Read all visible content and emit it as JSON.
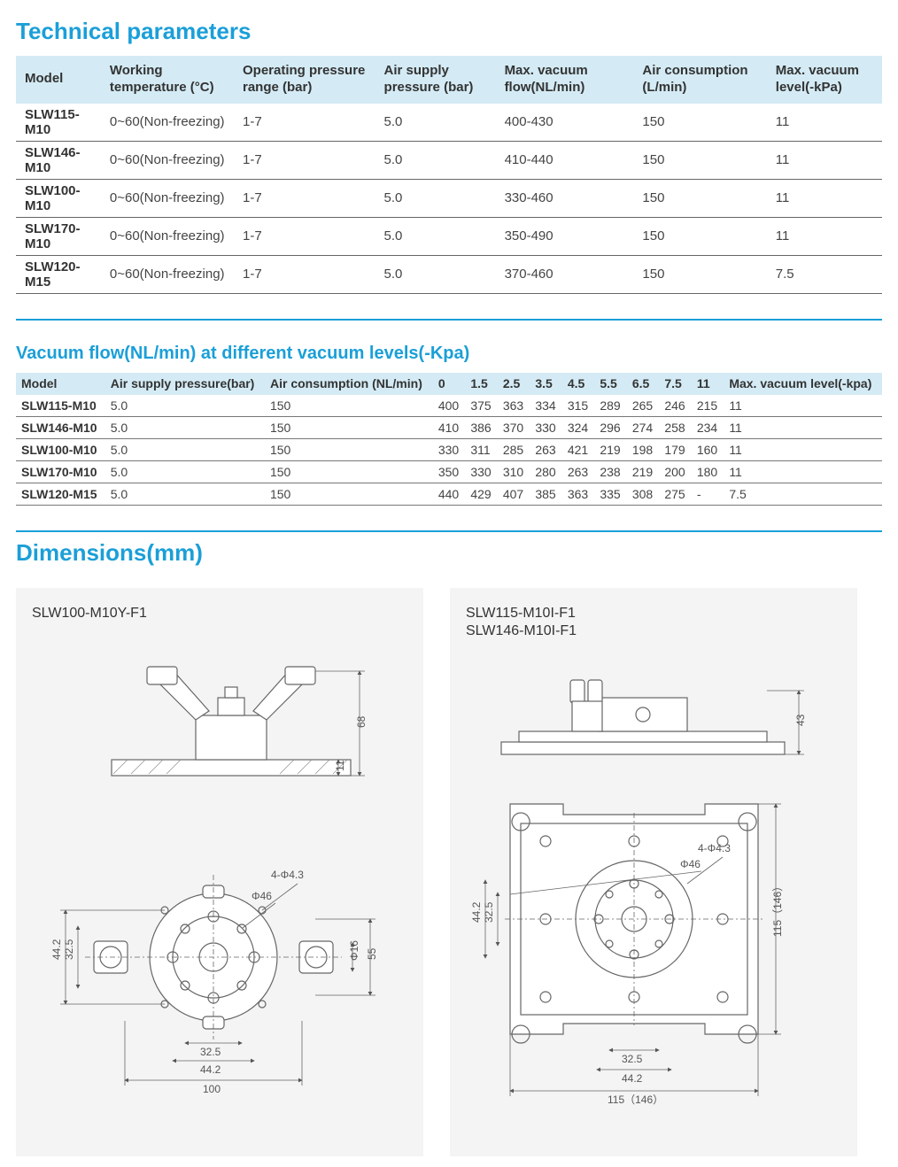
{
  "section1_title": "Technical parameters",
  "table1": {
    "columns": [
      "Model",
      "Working temperature (°C)",
      "Operating pressure range (bar)",
      "Air supply pressure (bar)",
      "Max. vacuum flow(NL/min)",
      "Air consumption (L/min)",
      "Max. vacuum level(-kPa)"
    ],
    "rows": [
      [
        "SLW115-M10",
        "0~60(Non-freezing)",
        "1-7",
        "5.0",
        "400-430",
        "150",
        "11"
      ],
      [
        "SLW146-M10",
        "0~60(Non-freezing)",
        "1-7",
        "5.0",
        "410-440",
        "150",
        "11"
      ],
      [
        "SLW100-M10",
        "0~60(Non-freezing)",
        "1-7",
        "5.0",
        "330-460",
        "150",
        "11"
      ],
      [
        "SLW170-M10",
        "0~60(Non-freezing)",
        "1-7",
        "5.0",
        "350-490",
        "150",
        "11"
      ],
      [
        "SLW120-M15",
        "0~60(Non-freezing)",
        "1-7",
        "5.0",
        "370-460",
        "150",
        "7.5"
      ]
    ]
  },
  "section2_title": "Vacuum flow(NL/min) at different  vacuum levels(-Kpa)",
  "table2": {
    "columns": [
      "Model",
      "Air supply pressure(bar)",
      "Air consumption (NL/min)",
      "0",
      "1.5",
      "2.5",
      "3.5",
      "4.5",
      "5.5",
      "6.5",
      "7.5",
      "11",
      "Max. vacuum level(-kpa)"
    ],
    "rows": [
      [
        "SLW115-M10",
        "5.0",
        "150",
        "400",
        "375",
        "363",
        "334",
        "315",
        "289",
        "265",
        "246",
        "215",
        "11"
      ],
      [
        "SLW146-M10",
        "5.0",
        "150",
        "410",
        "386",
        "370",
        "330",
        "324",
        "296",
        "274",
        "258",
        "234",
        "11"
      ],
      [
        "SLW100-M10",
        "5.0",
        "150",
        "330",
        "311",
        "285",
        "263",
        "421",
        "219",
        "198",
        "179",
        "160",
        "11"
      ],
      [
        "SLW170-M10",
        "5.0",
        "150",
        "350",
        "330",
        "310",
        "280",
        "263",
        "238",
        "219",
        "200",
        "180",
        "11"
      ],
      [
        "SLW120-M15",
        "5.0",
        "150",
        "440",
        "429",
        "407",
        "385",
        "363",
        "335",
        "308",
        "275",
        "-",
        "7.5"
      ]
    ]
  },
  "section3_title": "Dimensions(mm)",
  "panelA": {
    "title1": "SLW100-M10Y-F1",
    "dims": {
      "h_total": "68",
      "h_flange": "11",
      "side_h1": "44.2",
      "side_h2": "32.5",
      "d16": "Φ16",
      "h55": "55",
      "b325": "32.5",
      "b442": "44.2",
      "b100": "100",
      "holes": "4-Φ4.3",
      "d46": "Φ46"
    }
  },
  "panelB": {
    "title1": "SLW115-M10I-F1",
    "title2": "SLW146-M10I-F1",
    "dims": {
      "h_top": "43",
      "side_h1": "44.2",
      "side_h2": "32.5",
      "plate_h": "115（146）",
      "b325": "32.5",
      "b442": "44.2",
      "b_plate": "115（146）",
      "holes": "4-Φ4.3",
      "d46": "Φ46"
    }
  },
  "colors": {
    "accent": "#1b9fd8",
    "header_bg": "#d4ebf5",
    "panel_bg": "#f4f4f4",
    "line": "#666666"
  }
}
